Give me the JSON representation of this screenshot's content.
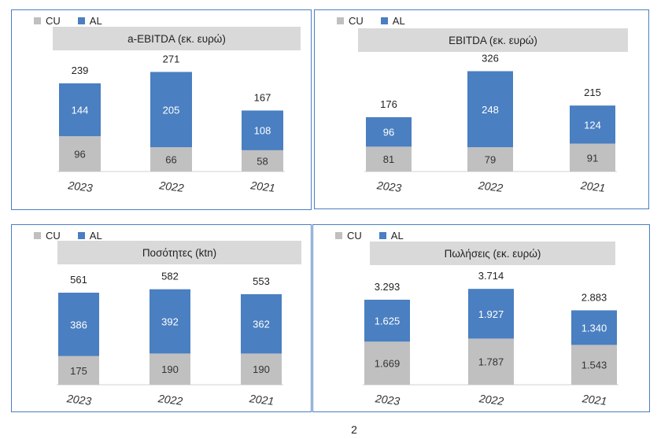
{
  "colors": {
    "cu": "#c0c0c0",
    "al": "#4a7fc1",
    "title_bg": "#d9d9d9",
    "border": "#4a7fc1"
  },
  "legend": {
    "cu": "CU",
    "al": "AL"
  },
  "page_number": "2",
  "chart_data": [
    {
      "type": "bar",
      "title": "a-EBITDA (εκ. ευρώ)",
      "categories": [
        "2023",
        "2022",
        "2021"
      ],
      "series": [
        {
          "name": "CU",
          "values": [
            96,
            66,
            58
          ],
          "labels": [
            "96",
            "66",
            "58"
          ]
        },
        {
          "name": "AL",
          "values": [
            144,
            205,
            108
          ],
          "labels": [
            "144",
            "205",
            "108"
          ]
        }
      ],
      "totals": [
        "239",
        "271",
        "167"
      ]
    },
    {
      "type": "bar",
      "title": "EBITDA (εκ. ευρώ)",
      "categories": [
        "2023",
        "2022",
        "2021"
      ],
      "series": [
        {
          "name": "CU",
          "values": [
            81,
            79,
            91
          ],
          "labels": [
            "81",
            "79",
            "91"
          ]
        },
        {
          "name": "AL",
          "values": [
            96,
            248,
            124
          ],
          "labels": [
            "96",
            "248",
            "124"
          ]
        }
      ],
      "totals": [
        "176",
        "326",
        "215"
      ]
    },
    {
      "type": "bar",
      "title": "Ποσότητες (ktn)",
      "categories": [
        "2023",
        "2022",
        "2021"
      ],
      "series": [
        {
          "name": "CU",
          "values": [
            175,
            190,
            190
          ],
          "labels": [
            "175",
            "190",
            "190"
          ]
        },
        {
          "name": "AL",
          "values": [
            386,
            392,
            362
          ],
          "labels": [
            "386",
            "392",
            "362"
          ]
        }
      ],
      "totals": [
        "561",
        "582",
        "553"
      ]
    },
    {
      "type": "bar",
      "title": "Πωλήσεις (εκ. ευρώ)",
      "categories": [
        "2023",
        "2022",
        "2021"
      ],
      "series": [
        {
          "name": "CU",
          "values": [
            1669,
            1787,
            1543
          ],
          "labels": [
            "1.669",
            "1.787",
            "1.543"
          ]
        },
        {
          "name": "AL",
          "values": [
            1625,
            1927,
            1340
          ],
          "labels": [
            "1.625",
            "1.927",
            "1.340"
          ]
        }
      ],
      "totals": [
        "3.293",
        "3.714",
        "2.883"
      ]
    }
  ]
}
